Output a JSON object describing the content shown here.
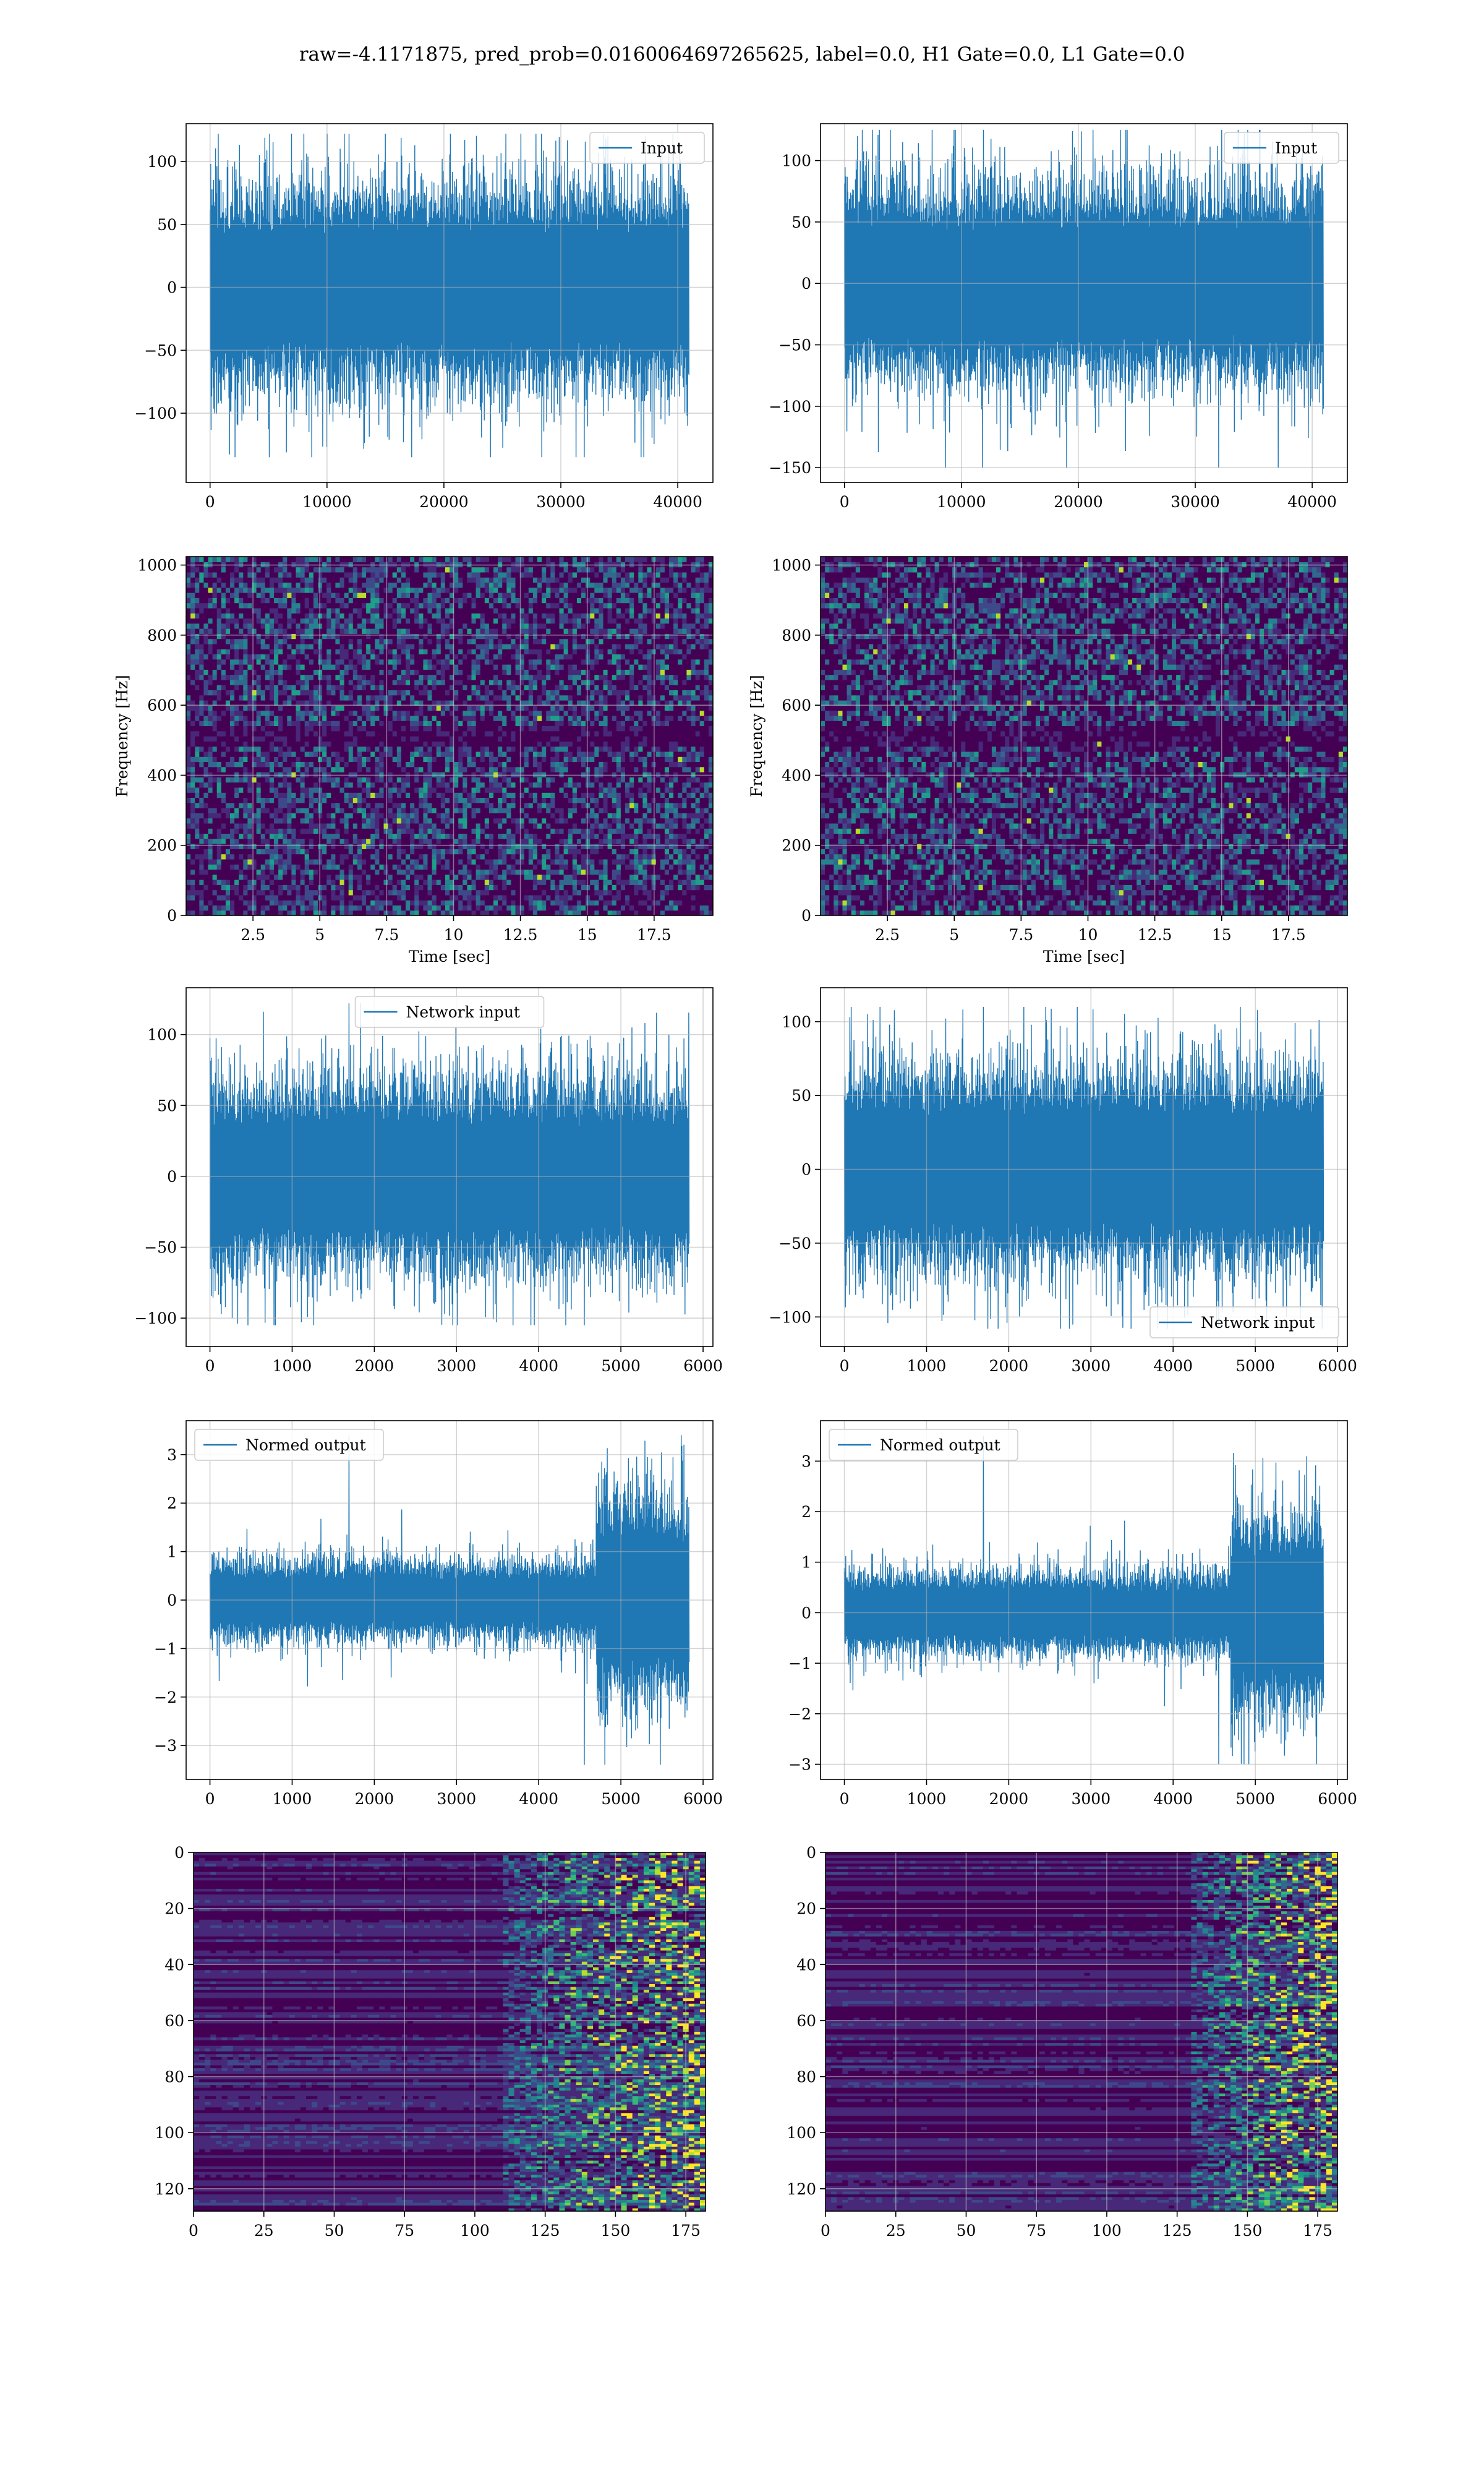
{
  "suptitle": "raw=-4.1171875, pred_prob=0.0160064697265625, label=0.0, H1 Gate=0.0, L1 Gate=0.0",
  "colors": {
    "line": "#1f77b4",
    "grid": "#b0b0b0",
    "viridis": [
      "#440154",
      "#482878",
      "#3e4989",
      "#31688e",
      "#26828e",
      "#1f9e89",
      "#35b779",
      "#6ece58",
      "#b5de2b",
      "#fde725"
    ]
  },
  "chart_data": [
    {
      "id": "h1-input",
      "type": "line",
      "legend": "Input",
      "legend_loc": "upper-right",
      "xlim": [
        -2048,
        43008
      ],
      "ylim": [
        -155,
        130
      ],
      "xticks": [
        0,
        10000,
        20000,
        30000,
        40000
      ],
      "yticks": [
        -100,
        -50,
        0,
        50,
        100
      ],
      "x_range": [
        0,
        40960
      ],
      "envelope": 60,
      "peak": 122,
      "trough": -135
    },
    {
      "id": "l1-input",
      "type": "line",
      "legend": "Input",
      "legend_loc": "upper-right",
      "xlim": [
        -2048,
        43008
      ],
      "ylim": [
        -162,
        130
      ],
      "xticks": [
        0,
        10000,
        20000,
        30000,
        40000
      ],
      "yticks": [
        -150,
        -100,
        -50,
        0,
        50,
        100
      ],
      "x_range": [
        0,
        40960
      ],
      "envelope": 60,
      "peak": 125,
      "trough": -150
    },
    {
      "id": "h1-spectrogram",
      "type": "heatmap",
      "xlabel": "Time [sec]",
      "ylabel": "Frequency [Hz]",
      "xlim": [
        0,
        19.7
      ],
      "ylim": [
        0,
        1024
      ],
      "xticks": [
        2.5,
        5.0,
        7.5,
        10.0,
        12.5,
        15.0,
        17.5
      ],
      "yticks": [
        0,
        200,
        400,
        600,
        800,
        1000
      ],
      "grid": true
    },
    {
      "id": "l1-spectrogram",
      "type": "heatmap",
      "xlabel": "Time [sec]",
      "ylabel": "Frequency [Hz]",
      "xlim": [
        0,
        19.7
      ],
      "ylim": [
        0,
        1024
      ],
      "xticks": [
        2.5,
        5.0,
        7.5,
        10.0,
        12.5,
        15.0,
        17.5
      ],
      "yticks": [
        0,
        200,
        400,
        600,
        800,
        1000
      ],
      "grid": true
    },
    {
      "id": "h1-network-input",
      "type": "line",
      "legend": "Network input",
      "legend_loc": "upper-center",
      "xlim": [
        -290,
        6120
      ],
      "ylim": [
        -120,
        133
      ],
      "xticks": [
        0,
        1000,
        2000,
        3000,
        4000,
        5000,
        6000
      ],
      "yticks": [
        -100,
        -50,
        0,
        50,
        100
      ],
      "x_range": [
        0,
        5830
      ],
      "envelope": 50,
      "peak": 122,
      "trough": -105
    },
    {
      "id": "l1-network-input",
      "type": "line",
      "legend": "Network input",
      "legend_loc": "lower-right",
      "xlim": [
        -290,
        6120
      ],
      "ylim": [
        -120,
        123
      ],
      "xticks": [
        0,
        1000,
        2000,
        3000,
        4000,
        5000,
        6000
      ],
      "yticks": [
        -100,
        -50,
        0,
        50,
        100
      ],
      "x_range": [
        0,
        5830
      ],
      "envelope": 50,
      "peak": 110,
      "trough": -108
    },
    {
      "id": "h1-normed-output",
      "type": "line",
      "legend": "Normed output",
      "legend_loc": "upper-left",
      "xlim": [
        -290,
        6120
      ],
      "ylim": [
        -3.7,
        3.7
      ],
      "xticks": [
        0,
        1000,
        2000,
        3000,
        4000,
        5000,
        6000
      ],
      "yticks": [
        -3,
        -2,
        -1,
        0,
        1,
        2,
        3
      ],
      "x_range": [
        0,
        5830
      ],
      "envelope": 0.6,
      "peak": 3.4,
      "trough": -3.4,
      "burst_start": 4700,
      "burst_envelope": 1.6
    },
    {
      "id": "l1-normed-output",
      "type": "line",
      "legend": "Normed output",
      "legend_loc": "upper-left",
      "xlim": [
        -290,
        6120
      ],
      "ylim": [
        -3.3,
        3.8
      ],
      "xticks": [
        0,
        1000,
        2000,
        3000,
        4000,
        5000,
        6000
      ],
      "yticks": [
        -3,
        -2,
        -1,
        0,
        1,
        2,
        3
      ],
      "x_range": [
        0,
        5830
      ],
      "envelope": 0.6,
      "peak": 3.5,
      "trough": -3.0,
      "burst_start": 4700,
      "burst_envelope": 1.5
    },
    {
      "id": "h1-feature-map",
      "type": "heatmap",
      "xlim": [
        0,
        182
      ],
      "ylim": [
        128,
        0
      ],
      "xticks": [
        0,
        25,
        50,
        75,
        100,
        125,
        150,
        175
      ],
      "yticks": [
        0,
        20,
        40,
        60,
        80,
        100,
        120
      ],
      "active_from": 110,
      "grid": true
    },
    {
      "id": "l1-feature-map",
      "type": "heatmap",
      "xlim": [
        0,
        182
      ],
      "ylim": [
        128,
        0
      ],
      "xticks": [
        0,
        25,
        50,
        75,
        100,
        125,
        150,
        175
      ],
      "yticks": [
        0,
        20,
        40,
        60,
        80,
        100,
        120
      ],
      "active_from": 130,
      "grid": true
    }
  ]
}
